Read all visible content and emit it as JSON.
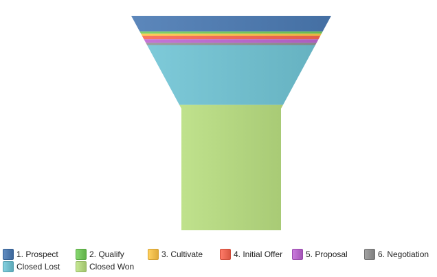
{
  "chart_data": {
    "type": "funnel",
    "title": "",
    "categories": [
      "1. Prospect",
      "2. Qualify",
      "3. Cultivate",
      "4. Initial Offer",
      "5. Proposal",
      "6. Negotiation",
      "Closed Lost",
      "Closed Won"
    ],
    "values": [
      22,
      3,
      3,
      5,
      5,
      3,
      84,
      176
    ],
    "colors": [
      "#4e79ad",
      "#72c35b",
      "#f2bd4c",
      "#ec6855",
      "#b667c9",
      "#8f8f8f",
      "#70bccb",
      "#b2d47f"
    ],
    "legend_position": "bottom",
    "grid": false
  }
}
